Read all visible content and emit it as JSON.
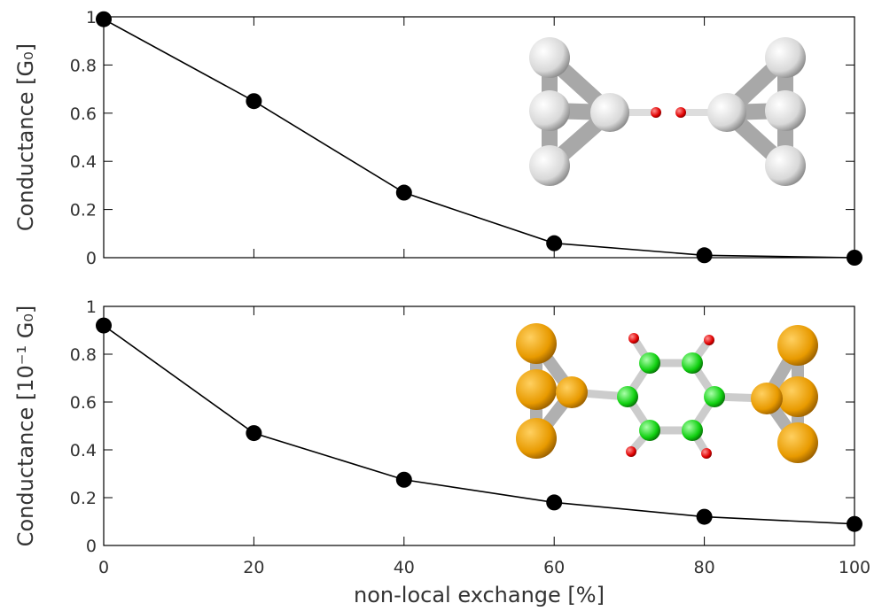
{
  "chart_data": [
    {
      "type": "line",
      "ylabel": "Conductance [G₀]",
      "x": [
        0,
        20,
        40,
        60,
        80,
        100
      ],
      "xlim": [
        0,
        100
      ],
      "xticks": [
        0,
        20,
        40,
        60,
        80,
        100
      ],
      "ylim": [
        0,
        1
      ],
      "yticks": [
        0,
        0.2,
        0.4,
        0.6,
        0.8,
        1
      ],
      "values": [
        0.99,
        0.65,
        0.27,
        0.06,
        0.01,
        0.0
      ],
      "color": "#000000"
    },
    {
      "type": "line",
      "ylabel": "Conductance [10⁻¹ G₀]",
      "xlabel": "non-local exchange [%]",
      "x": [
        0,
        20,
        40,
        60,
        80,
        100
      ],
      "xlim": [
        0,
        100
      ],
      "xticks": [
        0,
        20,
        40,
        60,
        80,
        100
      ],
      "ylim": [
        0,
        1
      ],
      "yticks": [
        0,
        0.2,
        0.4,
        0.6,
        0.8,
        1
      ],
      "values": [
        0.92,
        0.47,
        0.275,
        0.18,
        0.12,
        0.09
      ],
      "color": "#000000"
    }
  ]
}
